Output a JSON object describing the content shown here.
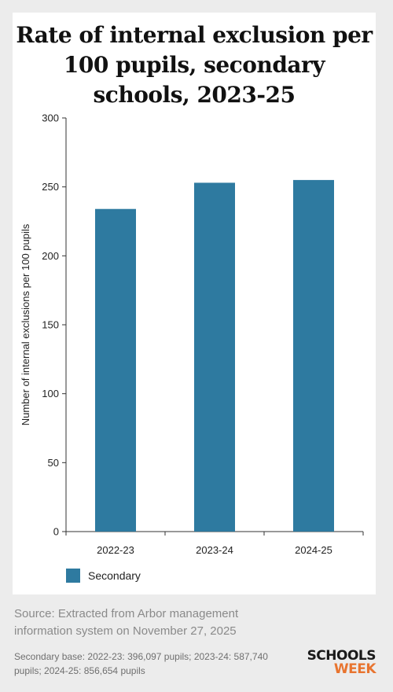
{
  "chart_data": {
    "type": "bar",
    "title": "Rate of internal exclusion per 100 pupils, secondary schools, 2023-25",
    "ylabel": "Number of internal exclusions per 100 pupils",
    "xlabel": "",
    "categories": [
      "2022-23",
      "2023-24",
      "2024-25"
    ],
    "series": [
      {
        "name": "Secondary",
        "values": [
          234,
          253,
          255
        ]
      }
    ],
    "ylim": [
      0,
      300
    ],
    "yticks": [
      0,
      50,
      100,
      150,
      200,
      250,
      300
    ],
    "grid": false,
    "legend_placement": "bottom-left",
    "bar_color": "#2e7aa0"
  },
  "source": "Source: Extracted from Arbor management information system on November 27, 2025",
  "base_note": "Secondary base: 2022-23: 396,097 pupils; 2023-24: 587,740 pupils; 2024-25: 856,654 pupils",
  "logo": {
    "top": "SCHOOLS",
    "bottom": "WEEK",
    "top_color": "#1a1a1a",
    "bottom_color": "#e8742f"
  }
}
